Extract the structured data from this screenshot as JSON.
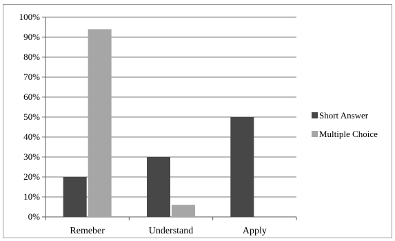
{
  "chart_data": {
    "type": "bar",
    "categories": [
      "Remeber",
      "Understand",
      "Apply"
    ],
    "series": [
      {
        "name": "Short Answer",
        "values": [
          20,
          30,
          50
        ],
        "color": "#474747"
      },
      {
        "name": "Multiple Choice",
        "values": [
          94,
          6,
          0
        ],
        "color": "#a6a6a6"
      }
    ],
    "y_ticks": [
      "0%",
      "10%",
      "20%",
      "30%",
      "40%",
      "50%",
      "60%",
      "70%",
      "80%",
      "90%",
      "100%"
    ],
    "ylim": [
      0,
      100
    ],
    "grid": true,
    "legend_position": "right",
    "title": "",
    "xlabel": "",
    "ylabel": ""
  }
}
